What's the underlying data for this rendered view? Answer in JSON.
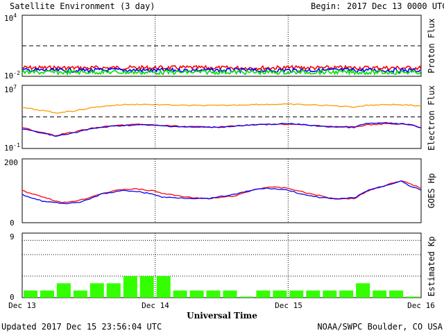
{
  "header": {
    "title": "Satellite Environment (3 day)",
    "begin_label": "Begin:",
    "begin_value": "2017 Dec 13 0000 UTC"
  },
  "footer": {
    "updated": "Updated 2017 Dec 15 23:56:04 UTC",
    "credit": "NOAA/SWPC Boulder, CO USA"
  },
  "colors": {
    "red": "#ff0000",
    "blue": "#0000ff",
    "green": "#00e000",
    "orange": "#ff9900",
    "bar_green": "#33ff00"
  },
  "chart_data": [
    {
      "type": "line",
      "ylabel": "Proton Flux",
      "yscale": "log",
      "ylim": [
        0.01,
        10000
      ],
      "yticks": {
        "top": "10",
        "top_exp": "4",
        "bottom": "10",
        "bottom_exp": "-2"
      },
      "threshold": 10,
      "x_days": [
        0,
        0.25,
        0.5,
        0.75,
        1,
        1.25,
        1.5,
        1.75,
        2,
        2.25,
        2.5,
        2.75,
        3
      ],
      "series": [
        {
          "color": "red",
          "values": [
            0.07,
            0.068,
            0.066,
            0.07,
            0.068,
            0.07,
            0.066,
            0.068,
            0.07,
            0.067,
            0.069,
            0.068,
            0.066
          ]
        },
        {
          "color": "blue",
          "values": [
            0.04,
            0.038,
            0.039,
            0.041,
            0.038,
            0.04,
            0.039,
            0.038,
            0.04,
            0.039,
            0.041,
            0.039,
            0.038
          ]
        },
        {
          "color": "green",
          "values": [
            0.025,
            0.024,
            0.026,
            0.025,
            0.024,
            0.025,
            0.026,
            0.024,
            0.025,
            0.026,
            0.025,
            0.024,
            0.025
          ]
        }
      ]
    },
    {
      "type": "line",
      "ylabel": "Electron Flux",
      "yscale": "log",
      "ylim": [
        0.1,
        10000000
      ],
      "yticks": {
        "top": "10",
        "top_exp": "7",
        "bottom": "10",
        "bottom_exp": "-1"
      },
      "threshold": 1000,
      "x_days": [
        0,
        0.1,
        0.25,
        0.4,
        0.5,
        0.75,
        0.9,
        1,
        1.25,
        1.5,
        1.75,
        2,
        2.25,
        2.5,
        2.6,
        2.75,
        2.9,
        3
      ],
      "series": [
        {
          "color": "orange",
          "values": [
            15000,
            8000,
            3000,
            6000,
            12000,
            35000,
            40000,
            36000,
            28000,
            28000,
            38000,
            40000,
            30000,
            18000,
            30000,
            38000,
            32000,
            22000
          ]
        },
        {
          "color": "red",
          "values": [
            40,
            15,
            4,
            12,
            30,
            90,
            110,
            90,
            55,
            55,
            100,
            120,
            70,
            50,
            100,
            140,
            100,
            45
          ]
        },
        {
          "color": "blue",
          "values": [
            30,
            12,
            3,
            10,
            25,
            80,
            100,
            80,
            50,
            50,
            95,
            140,
            60,
            45,
            150,
            170,
            110,
            40
          ]
        }
      ]
    },
    {
      "type": "line",
      "ylabel": "GOES Hp",
      "ylim": [
        0,
        200
      ],
      "yticks": [
        "200",
        "0"
      ],
      "x_days": [
        0,
        0.15,
        0.3,
        0.45,
        0.6,
        0.75,
        0.85,
        1,
        1.05,
        1.25,
        1.4,
        1.6,
        1.75,
        1.85,
        2,
        2.15,
        2.35,
        2.5,
        2.6,
        2.75,
        2.85,
        2.9,
        3
      ],
      "series": [
        {
          "color": "red",
          "values": [
            100,
            82,
            62,
            72,
            92,
            104,
            106,
            99,
            92,
            80,
            75,
            84,
            104,
            112,
            108,
            92,
            75,
            76,
            100,
            120,
            130,
            125,
            108
          ]
        },
        {
          "color": "blue",
          "values": [
            88,
            68,
            60,
            65,
            90,
            100,
            99,
            88,
            80,
            77,
            75,
            89,
            104,
            108,
            102,
            84,
            74,
            78,
            102,
            118,
            132,
            118,
            102
          ]
        }
      ]
    },
    {
      "type": "bar",
      "ylabel": "Estimated Kp",
      "ylim": [
        0,
        9
      ],
      "yticks": [
        "9",
        "0"
      ],
      "gridlines": [
        3,
        6,
        8
      ],
      "values": [
        1,
        1,
        2,
        1,
        2,
        2,
        3,
        3,
        3,
        1,
        1,
        1,
        1,
        0,
        1,
        1,
        1,
        1,
        1,
        1,
        2,
        1,
        1,
        0
      ]
    }
  ],
  "xaxis": {
    "label": "Universal Time",
    "ticks": [
      "Dec 13",
      "Dec 14",
      "Dec 15",
      "Dec 16"
    ]
  }
}
